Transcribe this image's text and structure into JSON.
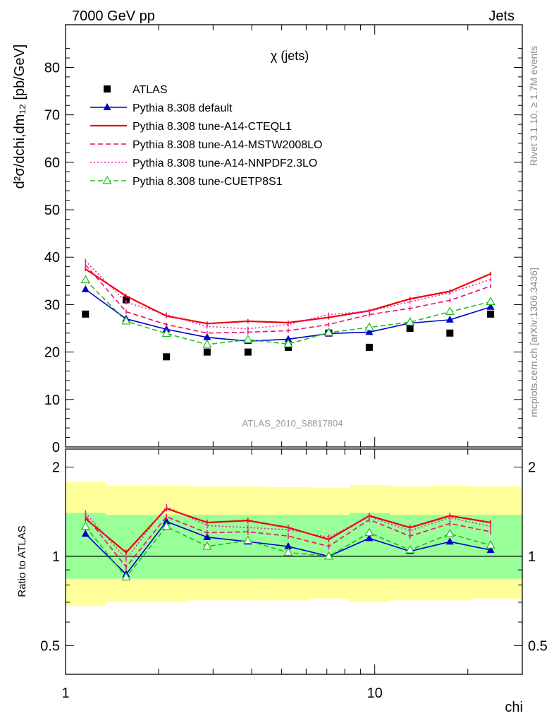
{
  "header": {
    "left": "7000 GeV pp",
    "right": "Jets"
  },
  "side_labels": {
    "rivet": "Rivet 3.1.10, ≥ 1.7M events",
    "mcplots": "mcplots.cern.ch [arXiv:1306.3436]"
  },
  "chart_data": [
    {
      "type": "scatter",
      "panel": "main",
      "title": "χ (jets)",
      "watermark": "ATLAS_2010_S8817804",
      "ylabel": "d²σ/dchi,dm₁₂ [pb/GeV]",
      "xlabel": "chi",
      "x_scale": "log",
      "xlim": [
        1,
        30.0
      ],
      "ylim": [
        0,
        89.0
      ],
      "x_ticks": [
        "1",
        "10"
      ],
      "y_ticks": [
        "0",
        "10",
        "20",
        "30",
        "40",
        "50",
        "60",
        "70",
        "80"
      ],
      "x": [
        1.16,
        1.57,
        2.12,
        2.87,
        3.89,
        5.25,
        7.1,
        9.6,
        13.0,
        17.5,
        23.7
      ],
      "series": [
        {
          "name": "ATLAS",
          "marker": "filled-square",
          "color": "#000000",
          "values": [
            28,
            31,
            19,
            20,
            20,
            21,
            24,
            21,
            25,
            24,
            28
          ]
        },
        {
          "name": "Pythia 8.308 default",
          "line": "solid",
          "marker": "filled-triangle",
          "color": "#0000cc",
          "values": [
            33.2,
            27.0,
            24.8,
            23.1,
            22.3,
            22.7,
            23.9,
            24.2,
            26.1,
            26.8,
            29.5
          ]
        },
        {
          "name": "Pythia 8.308 tune-A14-CTEQL1",
          "line": "solid",
          "color": "#ee0000",
          "values": [
            37.5,
            31.8,
            27.6,
            26.0,
            26.5,
            26.2,
            27.3,
            28.7,
            31.2,
            32.8,
            36.5
          ]
        },
        {
          "name": "Pythia 8.308 tune-A14-MSTW2008LO",
          "line": "dashed",
          "color": "#ee1166",
          "values": [
            38.4,
            28.5,
            25.8,
            24.0,
            24.2,
            24.5,
            25.8,
            27.9,
            29.2,
            30.9,
            33.9
          ]
        },
        {
          "name": "Pythia 8.308 tune-A14-NNPDF2.3LO",
          "line": "dotted",
          "color": "#ee22aa",
          "values": [
            39.2,
            30.5,
            27.9,
            25.4,
            24.9,
            25.8,
            27.9,
            28.6,
            30.6,
            32.5,
            35.3
          ]
        },
        {
          "name": "Pythia 8.308 tune-CUETP8S1",
          "line": "dashed",
          "marker": "open-triangle",
          "color": "#22bb22",
          "values": [
            35.2,
            26.5,
            23.9,
            21.6,
            22.6,
            21.7,
            24.1,
            25.2,
            26.3,
            28.5,
            30.6
          ]
        }
      ]
    },
    {
      "type": "line",
      "panel": "ratio",
      "ylabel": "Ratio to ATLAS",
      "x_scale": "log",
      "y_scale": "log",
      "ylim": [
        0.4,
        2.3
      ],
      "y_ticks": [
        "0.5",
        "1",
        "2"
      ],
      "x": [
        1.16,
        1.57,
        2.12,
        2.87,
        3.89,
        5.25,
        7.1,
        9.6,
        13.0,
        17.5,
        23.7
      ],
      "bands": {
        "x_edges": [
          1.0,
          1.35,
          1.83,
          2.48,
          3.35,
          4.53,
          6.13,
          8.29,
          11.2,
          15.2,
          20.5,
          30.0
        ],
        "yellow_low": [
          0.68,
          0.7,
          0.7,
          0.71,
          0.71,
          0.71,
          0.72,
          0.7,
          0.71,
          0.71,
          0.72
        ],
        "yellow_high": [
          1.78,
          1.73,
          1.73,
          1.72,
          1.72,
          1.71,
          1.7,
          1.74,
          1.72,
          1.73,
          1.72
        ],
        "green_low": [
          0.84,
          0.84,
          0.84,
          0.84,
          0.84,
          0.84,
          0.84,
          0.84,
          0.84,
          0.84,
          0.84
        ],
        "green_high": [
          1.4,
          1.38,
          1.38,
          1.38,
          1.38,
          1.38,
          1.38,
          1.4,
          1.38,
          1.38,
          1.38
        ]
      },
      "series": [
        {
          "name": "Pythia 8.308 default",
          "values": [
            1.19,
            0.87,
            1.31,
            1.16,
            1.12,
            1.08,
            1.0,
            1.15,
            1.04,
            1.12,
            1.05
          ]
        },
        {
          "name": "Pythia 8.308 tune-A14-CTEQL1",
          "values": [
            1.34,
            1.03,
            1.45,
            1.3,
            1.32,
            1.25,
            1.14,
            1.37,
            1.25,
            1.37,
            1.3
          ]
        },
        {
          "name": "Pythia 8.308 tune-A14-MSTW2008LO",
          "values": [
            1.37,
            0.92,
            1.36,
            1.2,
            1.21,
            1.17,
            1.08,
            1.33,
            1.17,
            1.29,
            1.21
          ]
        },
        {
          "name": "Pythia 8.308 tune-A14-NNPDF2.3LO",
          "values": [
            1.4,
            0.98,
            1.47,
            1.27,
            1.25,
            1.23,
            1.16,
            1.36,
            1.22,
            1.35,
            1.26
          ]
        },
        {
          "name": "Pythia 8.308 tune-CUETP8S1",
          "values": [
            1.26,
            0.85,
            1.26,
            1.08,
            1.13,
            1.03,
            1.0,
            1.2,
            1.05,
            1.19,
            1.09
          ]
        }
      ]
    }
  ]
}
